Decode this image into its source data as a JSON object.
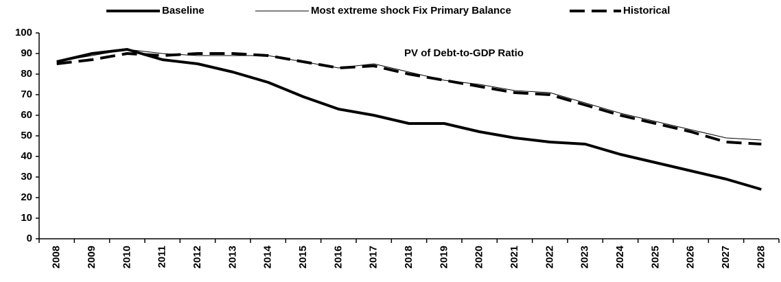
{
  "chart_data": {
    "type": "line",
    "title": "PV of Debt-to-GDP Ratio",
    "categories": [
      "2008",
      "2009",
      "2010",
      "2011",
      "2012",
      "2013",
      "2014",
      "2015",
      "2016",
      "2017",
      "2018",
      "2019",
      "2020",
      "2021",
      "2022",
      "2023",
      "2024",
      "2025",
      "2026",
      "2027",
      "2028"
    ],
    "series": [
      {
        "name": "Baseline",
        "color": "#000000",
        "line_width": 4,
        "dashed": false,
        "values": [
          86,
          90,
          92,
          87,
          85,
          81,
          76,
          69,
          63,
          60,
          56,
          56,
          52,
          49,
          47,
          46,
          41,
          37,
          33,
          29,
          24
        ]
      },
      {
        "name": "Most extreme shock Fix Primary Balance",
        "color": "#000000",
        "line_width": 1,
        "dashed": false,
        "values": [
          86,
          89,
          92,
          90,
          89,
          89,
          89,
          86,
          83,
          85,
          81,
          77,
          75,
          72,
          71,
          66,
          61,
          57,
          53,
          49,
          48
        ]
      },
      {
        "name": "Historical",
        "color": "#000000",
        "line_width": 4,
        "dashed": true,
        "values": [
          85,
          87,
          90,
          89,
          90,
          90,
          89,
          86,
          83,
          84,
          80,
          77,
          74,
          71,
          70,
          65,
          60,
          56,
          52,
          47,
          46
        ]
      }
    ],
    "ylim": [
      0,
      100
    ],
    "yticks": [
      0,
      10,
      20,
      30,
      40,
      50,
      60,
      70,
      80,
      90,
      100
    ],
    "grid": false,
    "legend": "top"
  }
}
